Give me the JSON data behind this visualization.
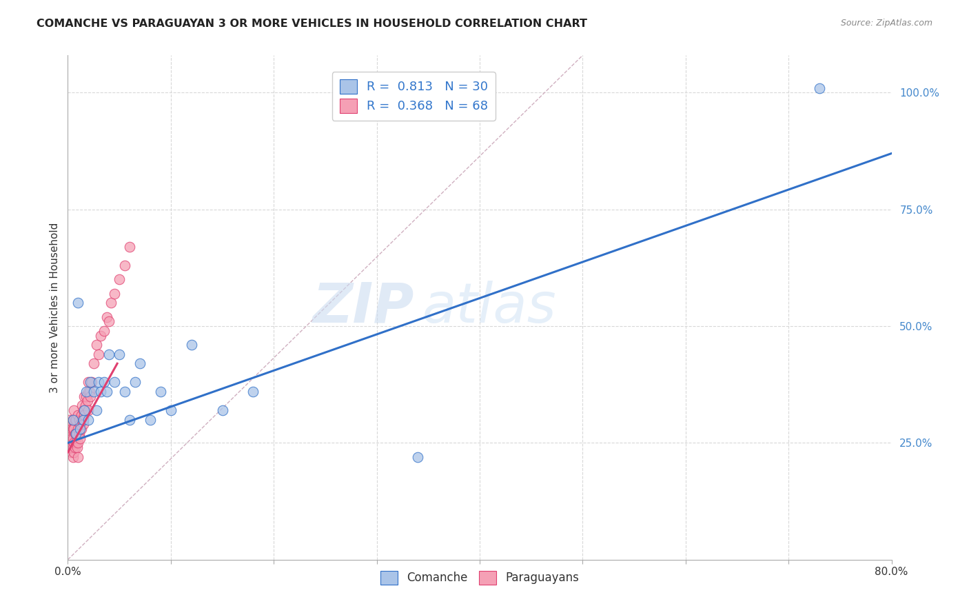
{
  "title": "COMANCHE VS PARAGUAYAN 3 OR MORE VEHICLES IN HOUSEHOLD CORRELATION CHART",
  "source": "Source: ZipAtlas.com",
  "ylabel": "3 or more Vehicles in Household",
  "xlim": [
    0.0,
    0.8
  ],
  "ylim": [
    0.0,
    1.08
  ],
  "xticks": [
    0.0,
    0.1,
    0.2,
    0.3,
    0.4,
    0.5,
    0.6,
    0.7,
    0.8
  ],
  "yticks_right": [
    0.25,
    0.5,
    0.75,
    1.0
  ],
  "yticklabels_right": [
    "25.0%",
    "50.0%",
    "75.0%",
    "100.0%"
  ],
  "comanche_color": "#aac4e8",
  "paraguayan_color": "#f5a0b5",
  "comanche_line_color": "#3070c8",
  "paraguayan_line_color": "#e04070",
  "diagonal_color": "#d0b0c0",
  "legend_comanche_label": "R =  0.813   N = 30",
  "legend_paraguayan_label": "R =  0.368   N = 68",
  "watermark_zip": "ZIP",
  "watermark_atlas": "atlas",
  "comanche_scatter_x": [
    0.005,
    0.008,
    0.01,
    0.012,
    0.015,
    0.016,
    0.018,
    0.02,
    0.022,
    0.025,
    0.028,
    0.03,
    0.032,
    0.035,
    0.038,
    0.04,
    0.045,
    0.05,
    0.055,
    0.06,
    0.065,
    0.07,
    0.08,
    0.09,
    0.1,
    0.12,
    0.15,
    0.18,
    0.34,
    0.73
  ],
  "comanche_scatter_y": [
    0.3,
    0.27,
    0.55,
    0.28,
    0.3,
    0.32,
    0.36,
    0.3,
    0.38,
    0.36,
    0.32,
    0.38,
    0.36,
    0.38,
    0.36,
    0.44,
    0.38,
    0.44,
    0.36,
    0.3,
    0.38,
    0.42,
    0.3,
    0.36,
    0.32,
    0.46,
    0.32,
    0.36,
    0.22,
    1.01
  ],
  "paraguayan_scatter_x": [
    0.001,
    0.001,
    0.001,
    0.002,
    0.002,
    0.002,
    0.002,
    0.003,
    0.003,
    0.003,
    0.003,
    0.004,
    0.004,
    0.004,
    0.005,
    0.005,
    0.005,
    0.005,
    0.005,
    0.006,
    0.006,
    0.006,
    0.006,
    0.007,
    0.007,
    0.007,
    0.008,
    0.008,
    0.008,
    0.009,
    0.009,
    0.01,
    0.01,
    0.01,
    0.01,
    0.011,
    0.011,
    0.012,
    0.012,
    0.013,
    0.013,
    0.014,
    0.014,
    0.015,
    0.015,
    0.016,
    0.016,
    0.017,
    0.018,
    0.019,
    0.02,
    0.02,
    0.02,
    0.021,
    0.022,
    0.023,
    0.025,
    0.028,
    0.03,
    0.032,
    0.035,
    0.038,
    0.04,
    0.042,
    0.045,
    0.05,
    0.055,
    0.06
  ],
  "paraguayan_scatter_y": [
    0.26,
    0.28,
    0.3,
    0.24,
    0.26,
    0.27,
    0.29,
    0.23,
    0.25,
    0.27,
    0.29,
    0.24,
    0.26,
    0.28,
    0.22,
    0.24,
    0.26,
    0.28,
    0.3,
    0.23,
    0.25,
    0.28,
    0.32,
    0.24,
    0.27,
    0.3,
    0.25,
    0.27,
    0.3,
    0.24,
    0.27,
    0.22,
    0.25,
    0.28,
    0.31,
    0.27,
    0.3,
    0.26,
    0.29,
    0.28,
    0.31,
    0.3,
    0.33,
    0.29,
    0.32,
    0.31,
    0.35,
    0.33,
    0.35,
    0.34,
    0.36,
    0.38,
    0.32,
    0.36,
    0.35,
    0.38,
    0.42,
    0.46,
    0.44,
    0.48,
    0.49,
    0.52,
    0.51,
    0.55,
    0.57,
    0.6,
    0.63,
    0.67
  ],
  "comanche_line_x": [
    0.0,
    0.8
  ],
  "comanche_line_y": [
    0.25,
    0.87
  ],
  "paraguayan_line_x": [
    0.0,
    0.048
  ],
  "paraguayan_line_y": [
    0.23,
    0.42
  ],
  "diagonal_line_x": [
    0.0,
    0.5
  ],
  "diagonal_line_y": [
    0.0,
    1.08
  ],
  "background_color": "#ffffff",
  "grid_color": "#d8d8d8"
}
